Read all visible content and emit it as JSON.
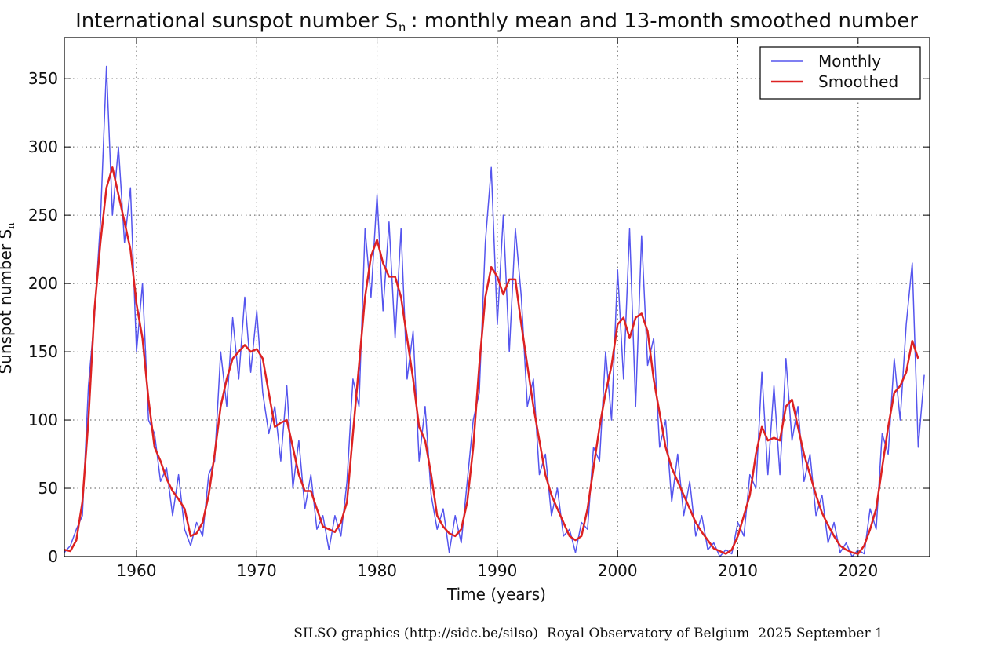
{
  "chart_data": {
    "type": "line",
    "title": "International sunspot number S",
    "title_subscript": "n",
    "title_suffix": ": monthly mean and 13-month smoothed number",
    "x_label": "Time (years)",
    "y_label": "Sunspot number S",
    "y_label_subscript": "n",
    "footer": "SILSO graphics (http://sidc.be/silso)  Royal Observatory of Belgium  2025 September 1",
    "xlim": [
      1954,
      2025.95
    ],
    "ylim": [
      0,
      380
    ],
    "xticks": [
      1960,
      1970,
      1980,
      1990,
      2000,
      2010,
      2020
    ],
    "yticks": [
      0,
      50,
      100,
      150,
      200,
      250,
      300,
      350
    ],
    "grid": true,
    "legend": "upper right",
    "x": [
      1954.0,
      1954.5,
      1955.0,
      1955.5,
      1956.0,
      1956.5,
      1957.0,
      1957.5,
      1958.0,
      1958.5,
      1959.0,
      1959.5,
      1960.0,
      1960.5,
      1961.0,
      1961.5,
      1962.0,
      1962.5,
      1963.0,
      1963.5,
      1964.0,
      1964.5,
      1965.0,
      1965.5,
      1966.0,
      1966.5,
      1967.0,
      1967.5,
      1968.0,
      1968.5,
      1969.0,
      1969.5,
      1970.0,
      1970.5,
      1971.0,
      1971.5,
      1972.0,
      1972.5,
      1973.0,
      1973.5,
      1974.0,
      1974.5,
      1975.0,
      1975.5,
      1976.0,
      1976.5,
      1977.0,
      1977.5,
      1978.0,
      1978.5,
      1979.0,
      1979.5,
      1980.0,
      1980.5,
      1981.0,
      1981.5,
      1982.0,
      1982.5,
      1983.0,
      1983.5,
      1984.0,
      1984.5,
      1985.0,
      1985.5,
      1986.0,
      1986.5,
      1987.0,
      1987.5,
      1988.0,
      1988.5,
      1989.0,
      1989.5,
      1990.0,
      1990.5,
      1991.0,
      1991.5,
      1992.0,
      1992.5,
      1993.0,
      1993.5,
      1994.0,
      1994.5,
      1995.0,
      1995.5,
      1996.0,
      1996.5,
      1997.0,
      1997.5,
      1998.0,
      1998.5,
      1999.0,
      1999.5,
      2000.0,
      2000.5,
      2001.0,
      2001.5,
      2002.0,
      2002.5,
      2003.0,
      2003.5,
      2004.0,
      2004.5,
      2005.0,
      2005.5,
      2006.0,
      2006.5,
      2007.0,
      2007.5,
      2008.0,
      2008.5,
      2009.0,
      2009.5,
      2010.0,
      2010.5,
      2011.0,
      2011.5,
      2012.0,
      2012.5,
      2013.0,
      2013.5,
      2014.0,
      2014.5,
      2015.0,
      2015.5,
      2016.0,
      2016.5,
      2017.0,
      2017.5,
      2018.0,
      2018.5,
      2019.0,
      2019.5,
      2020.0,
      2020.5,
      2021.0,
      2021.5,
      2022.0,
      2022.5,
      2023.0,
      2023.5,
      2024.0,
      2024.5,
      2025.0,
      2025.5
    ],
    "series": [
      {
        "name": "Monthly",
        "color": "#5555ee",
        "width": 1.5,
        "values": [
          3,
          8,
          20,
          30,
          125,
          175,
          245,
          359,
          250,
          300,
          230,
          270,
          150,
          200,
          100,
          90,
          55,
          65,
          30,
          60,
          20,
          8,
          25,
          15,
          60,
          70,
          150,
          110,
          175,
          130,
          190,
          135,
          180,
          120,
          90,
          110,
          70,
          125,
          50,
          85,
          35,
          60,
          20,
          30,
          5,
          30,
          15,
          55,
          130,
          110,
          240,
          190,
          265,
          180,
          245,
          160,
          240,
          130,
          165,
          70,
          110,
          45,
          20,
          35,
          3,
          30,
          10,
          55,
          100,
          120,
          230,
          285,
          170,
          250,
          150,
          240,
          190,
          110,
          130,
          60,
          75,
          30,
          50,
          15,
          20,
          3,
          25,
          20,
          80,
          70,
          150,
          100,
          210,
          130,
          240,
          110,
          235,
          140,
          160,
          80,
          100,
          40,
          75,
          30,
          55,
          15,
          30,
          5,
          10,
          0,
          5,
          2,
          25,
          15,
          60,
          50,
          135,
          60,
          125,
          60,
          145,
          85,
          110,
          55,
          75,
          30,
          45,
          10,
          25,
          3,
          10,
          0,
          5,
          2,
          35,
          20,
          90,
          75,
          145,
          100,
          170,
          215,
          80,
          133
        ]
      },
      {
        "name": "Smoothed",
        "color": "#dd2222",
        "width": 2.5,
        "values": [
          5,
          4,
          12,
          40,
          100,
          180,
          230,
          270,
          285,
          265,
          245,
          225,
          185,
          160,
          115,
          80,
          70,
          57,
          48,
          42,
          35,
          15,
          17,
          25,
          45,
          75,
          110,
          130,
          145,
          150,
          155,
          150,
          152,
          145,
          120,
          95,
          98,
          100,
          80,
          60,
          48,
          48,
          35,
          22,
          20,
          18,
          25,
          40,
          90,
          140,
          190,
          220,
          232,
          215,
          205,
          205,
          190,
          160,
          130,
          95,
          85,
          60,
          30,
          22,
          17,
          15,
          20,
          40,
          80,
          140,
          190,
          212,
          205,
          192,
          203,
          203,
          170,
          140,
          110,
          85,
          60,
          45,
          35,
          25,
          15,
          12,
          15,
          35,
          65,
          95,
          120,
          140,
          170,
          175,
          160,
          175,
          178,
          165,
          130,
          105,
          80,
          65,
          55,
          45,
          35,
          25,
          18,
          12,
          6,
          4,
          2,
          5,
          15,
          30,
          45,
          75,
          95,
          85,
          87,
          85,
          110,
          115,
          95,
          75,
          60,
          45,
          32,
          23,
          15,
          8,
          5,
          3,
          2,
          8,
          20,
          35,
          65,
          95,
          120,
          125,
          135,
          158,
          145,
          null
        ]
      }
    ]
  }
}
